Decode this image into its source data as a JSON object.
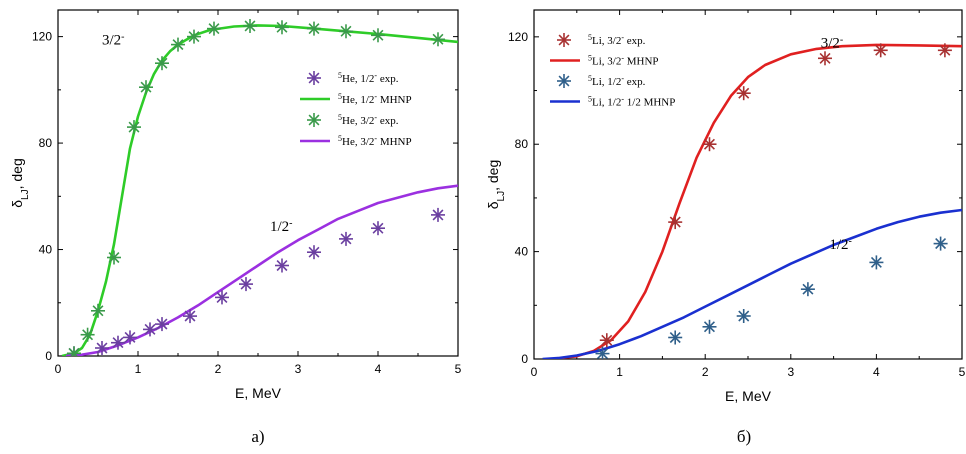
{
  "chart_data": [
    {
      "type": "line",
      "xlabel": "E, MeV",
      "ylabel": "δ",
      "ylabel_sub": "LJ",
      "ylabel_suffix": ", deg",
      "xlim": [
        0,
        5
      ],
      "ylim": [
        0,
        130
      ],
      "xticks": [
        0,
        1,
        2,
        3,
        4,
        5
      ],
      "yticks": [
        0,
        40,
        80,
        120
      ],
      "legend_position": "right",
      "caption": "а)",
      "annotations": [
        {
          "text": "3/2",
          "sup": "-",
          "x": 0.55,
          "y": 117
        },
        {
          "text": "1/2",
          "sup": "-",
          "x": 2.65,
          "y": 47
        }
      ],
      "series": [
        {
          "name_pre": "5",
          "name_main": "He, 1/2",
          "name_sup": "-",
          "name_post": " exp.",
          "kind": "scatter",
          "color": "#6b3fa0",
          "points": [
            [
              0.2,
              1
            ],
            [
              0.55,
              3
            ],
            [
              0.75,
              5
            ],
            [
              0.9,
              7
            ],
            [
              1.15,
              10
            ],
            [
              1.3,
              12
            ],
            [
              1.65,
              15
            ],
            [
              2.05,
              22
            ],
            [
              2.35,
              27
            ],
            [
              2.8,
              34
            ],
            [
              3.2,
              39
            ],
            [
              3.6,
              44
            ],
            [
              4.0,
              48
            ],
            [
              4.75,
              53
            ]
          ]
        },
        {
          "name_pre": "5",
          "name_main": "He, 1/2",
          "name_sup": "-",
          "name_post": " MHNP",
          "kind": "line",
          "color": "#2ecc28",
          "points": [
            [
              0.05,
              0
            ],
            [
              0.2,
              1
            ],
            [
              0.3,
              3
            ],
            [
              0.4,
              8
            ],
            [
              0.5,
              17
            ],
            [
              0.6,
              28
            ],
            [
              0.7,
              42
            ],
            [
              0.8,
              60
            ],
            [
              0.9,
              78
            ],
            [
              1.0,
              90
            ],
            [
              1.1,
              99
            ],
            [
              1.2,
              106
            ],
            [
              1.3,
              111
            ],
            [
              1.4,
              114.5
            ],
            [
              1.5,
              117
            ],
            [
              1.7,
              120.5
            ],
            [
              1.9,
              122.5
            ],
            [
              2.2,
              123.8
            ],
            [
              2.5,
              124.2
            ],
            [
              2.8,
              124
            ],
            [
              3.2,
              123
            ],
            [
              3.6,
              122
            ],
            [
              4.0,
              121
            ],
            [
              4.5,
              119.5
            ],
            [
              5.0,
              118
            ]
          ]
        },
        {
          "name_pre": "5",
          "name_main": "He, 3/2",
          "name_sup": "-",
          "name_post": " exp.",
          "kind": "scatter",
          "color": "#3a9a4a",
          "points": [
            [
              0.2,
              1
            ],
            [
              0.37,
              8
            ],
            [
              0.5,
              17
            ],
            [
              0.7,
              37
            ],
            [
              0.95,
              86
            ],
            [
              1.1,
              101
            ],
            [
              1.3,
              110
            ],
            [
              1.5,
              117
            ],
            [
              1.7,
              120
            ],
            [
              1.95,
              123
            ],
            [
              2.4,
              124
            ],
            [
              2.8,
              123.5
            ],
            [
              3.2,
              123
            ],
            [
              3.6,
              122
            ],
            [
              4.0,
              120.5
            ],
            [
              4.75,
              119
            ]
          ]
        },
        {
          "name_pre": "5",
          "name_main": "He, 3/2",
          "name_sup": "-",
          "name_post": " MHNP",
          "kind": "line",
          "color": "#9b30e0",
          "points": [
            [
              0.1,
              0
            ],
            [
              0.3,
              0.5
            ],
            [
              0.5,
              1.5
            ],
            [
              0.75,
              4
            ],
            [
              1.0,
              7
            ],
            [
              1.25,
              10.5
            ],
            [
              1.5,
              14.5
            ],
            [
              1.75,
              19
            ],
            [
              2.0,
              24
            ],
            [
              2.25,
              29
            ],
            [
              2.5,
              34
            ],
            [
              2.75,
              39
            ],
            [
              3.0,
              43.5
            ],
            [
              3.25,
              47.5
            ],
            [
              3.5,
              51.5
            ],
            [
              3.75,
              54.5
            ],
            [
              4.0,
              57.5
            ],
            [
              4.25,
              59.5
            ],
            [
              4.5,
              61.5
            ],
            [
              4.75,
              63
            ],
            [
              5.0,
              64
            ]
          ]
        }
      ]
    },
    {
      "type": "line",
      "xlabel": "E, MeV",
      "ylabel": "δ",
      "ylabel_sub": "LJ",
      "ylabel_suffix": ", deg",
      "xlim": [
        0,
        5
      ],
      "ylim": [
        0,
        130
      ],
      "xticks": [
        0,
        1,
        2,
        3,
        4,
        5
      ],
      "yticks": [
        0,
        40,
        80,
        120
      ],
      "legend_position": "top-left",
      "caption": "б)",
      "annotations": [
        {
          "text": "3/2",
          "sup": "-",
          "x": 3.35,
          "y": 116
        },
        {
          "text": "1/2",
          "sup": "-",
          "x": 3.45,
          "y": 41
        }
      ],
      "series": [
        {
          "name_pre": "5",
          "name_main": "Li, 3/2",
          "name_sup": "-",
          "name_post": " exp.",
          "kind": "scatter",
          "color": "#a83232",
          "points": [
            [
              0.85,
              7
            ],
            [
              1.65,
              51
            ],
            [
              2.05,
              80
            ],
            [
              2.45,
              99
            ],
            [
              3.4,
              112
            ],
            [
              4.05,
              115
            ],
            [
              4.8,
              115
            ]
          ]
        },
        {
          "name_pre": "5",
          "name_main": "Li, 3/2",
          "name_sup": "-",
          "name_post": " MHNP",
          "kind": "line",
          "color": "#e02020",
          "points": [
            [
              0.2,
              0
            ],
            [
              0.5,
              1
            ],
            [
              0.7,
              3
            ],
            [
              0.9,
              7
            ],
            [
              1.1,
              14
            ],
            [
              1.3,
              25
            ],
            [
              1.5,
              40
            ],
            [
              1.7,
              58
            ],
            [
              1.9,
              75
            ],
            [
              2.1,
              88
            ],
            [
              2.3,
              98
            ],
            [
              2.5,
              105
            ],
            [
              2.7,
              109.5
            ],
            [
              3.0,
              113.5
            ],
            [
              3.3,
              115.5
            ],
            [
              3.6,
              116.5
            ],
            [
              4.0,
              117
            ],
            [
              4.5,
              116.8
            ],
            [
              5.0,
              116.5
            ]
          ]
        },
        {
          "name_pre": "5",
          "name_main": "Li, 1/2",
          "name_sup": "-",
          "name_post": " exp.",
          "kind": "scatter",
          "color": "#2f5f8a",
          "points": [
            [
              0.8,
              2
            ],
            [
              1.65,
              8
            ],
            [
              2.05,
              12
            ],
            [
              2.45,
              16
            ],
            [
              3.2,
              26
            ],
            [
              4.0,
              36
            ],
            [
              4.75,
              43
            ]
          ]
        },
        {
          "name_pre": "5",
          "name_main": "Li, 1/2",
          "name_sup": "-",
          "name_post": " 1/2 MHNP",
          "kind": "line",
          "color": "#1a30d0",
          "points": [
            [
              0.1,
              0
            ],
            [
              0.3,
              0.4
            ],
            [
              0.5,
              1.3
            ],
            [
              0.75,
              3
            ],
            [
              1.0,
              5.5
            ],
            [
              1.25,
              8.5
            ],
            [
              1.5,
              12
            ],
            [
              1.75,
              15.5
            ],
            [
              2.0,
              19.5
            ],
            [
              2.25,
              23.5
            ],
            [
              2.5,
              27.5
            ],
            [
              2.75,
              31.5
            ],
            [
              3.0,
              35.5
            ],
            [
              3.25,
              39
            ],
            [
              3.5,
              42.5
            ],
            [
              3.75,
              45.5
            ],
            [
              4.0,
              48.5
            ],
            [
              4.25,
              51
            ],
            [
              4.5,
              53
            ],
            [
              4.75,
              54.5
            ],
            [
              5.0,
              55.5
            ]
          ]
        }
      ]
    }
  ]
}
